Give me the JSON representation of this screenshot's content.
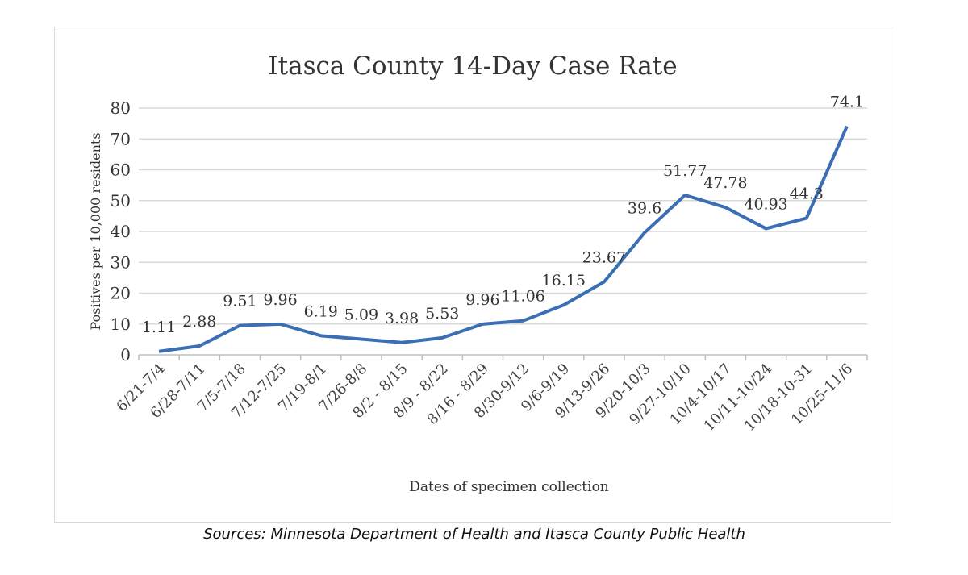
{
  "chart_data": {
    "type": "line",
    "title": "Itasca County 14-Day Case Rate",
    "xlabel": "Dates of specimen collection",
    "ylabel": "Positives per 10,000 residents",
    "ylim": [
      0,
      80
    ],
    "yticks": [
      0,
      10,
      20,
      30,
      40,
      50,
      60,
      70,
      80
    ],
    "grid": true,
    "legend": "none",
    "categories": [
      "6/21-7/4",
      "6/28-7/11",
      "7/5-7/18",
      "7/12-7/25",
      "7/19-8/1",
      "7/26-8/8",
      "8/2 - 8/15",
      "8/9 - 8/22",
      "8/16 - 8/29",
      "8/30-9/12",
      "9/6-9/19",
      "9/13-9/26",
      "9/20-10/3",
      "9/27-10/10",
      "10/4-10/17",
      "10/11-10/24",
      "10/18-10-31",
      "10/25-11/6"
    ],
    "series": [
      {
        "values": [
          1.11,
          2.88,
          9.51,
          9.96,
          6.19,
          5.09,
          3.98,
          5.53,
          9.96,
          11.06,
          16.15,
          23.67,
          39.6,
          51.77,
          47.78,
          40.93,
          44.3,
          74.1
        ],
        "color": "#3a6eb5"
      }
    ],
    "data_labels": [
      "1.11",
      "2.88",
      "9.51",
      "9.96",
      "6.19",
      "5.09",
      "3.98",
      "5.53",
      "9.96",
      "11.06",
      "16.15",
      "23.67",
      "39.6",
      "51.77",
      "47.78",
      "40.93",
      "44.3",
      "74.1"
    ]
  },
  "source": "Sources: Minnesota Department of Health and Itasca County Public Health"
}
